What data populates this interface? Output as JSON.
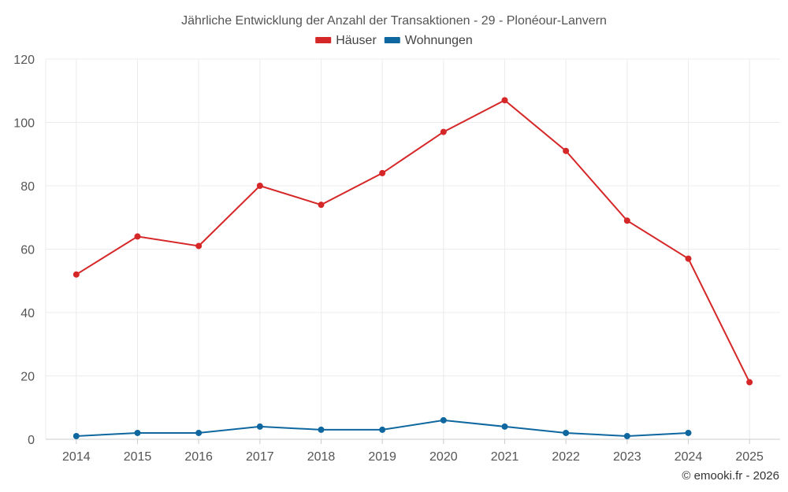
{
  "chart_data": {
    "type": "line",
    "title": "Jährliche Entwicklung der Anzahl der Transaktionen - 29 - Plonéour-Lanvern",
    "xlabel": "",
    "ylabel": "",
    "categories": [
      "2014",
      "2015",
      "2016",
      "2017",
      "2018",
      "2019",
      "2020",
      "2021",
      "2022",
      "2023",
      "2024",
      "2025"
    ],
    "ylim": [
      0,
      120
    ],
    "yticks": [
      0,
      20,
      40,
      60,
      80,
      100,
      120
    ],
    "grid": true,
    "legend_position": "top-center",
    "series": [
      {
        "name": "Häuser",
        "color": "#d62728",
        "values": [
          52,
          64,
          61,
          80,
          74,
          84,
          97,
          107,
          91,
          69,
          57,
          18
        ]
      },
      {
        "name": "Wohnungen",
        "color": "#0f67a0",
        "values": [
          1,
          2,
          2,
          4,
          3,
          3,
          6,
          4,
          2,
          1,
          2,
          null
        ]
      }
    ]
  },
  "credit": "© emooki.fr - 2026"
}
